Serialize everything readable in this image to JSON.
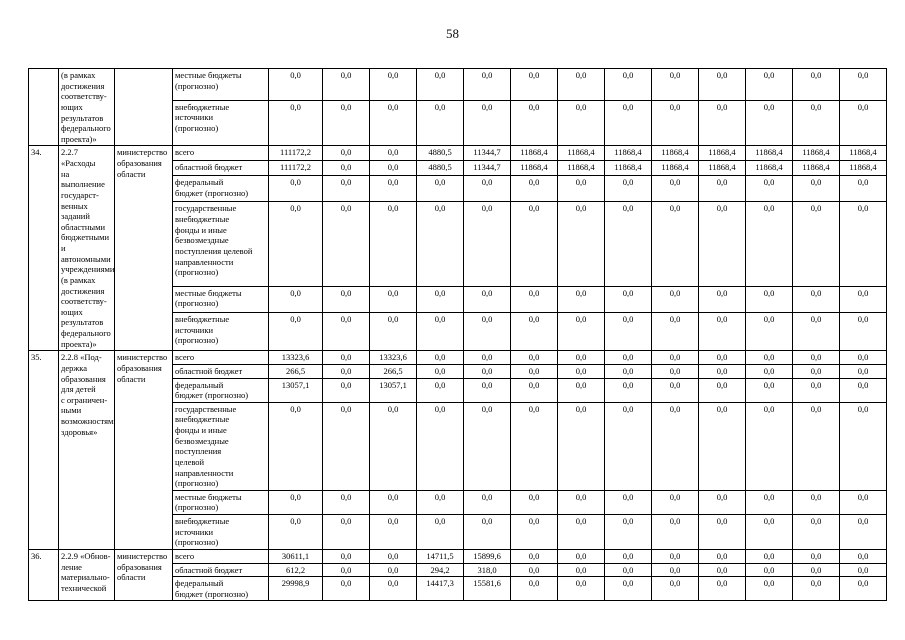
{
  "page": {
    "number": "58"
  },
  "table": {
    "blocks": [
      {
        "num": "",
        "name": "(в рамках\nдостижения\nсоответству-\nющих\nрезультатов\nфедерального\nпроекта)»",
        "executor": "",
        "rows": [
          {
            "source": "местные бюджеты\n(прогнозно)",
            "values": [
              "0,0",
              "0,0",
              "0,0",
              "0,0",
              "0,0",
              "0,0",
              "0,0",
              "0,0",
              "0,0",
              "0,0",
              "0,0",
              "0,0",
              "0,0"
            ]
          },
          {
            "source": "внебюджетные\nисточники\n(прогнозно)",
            "values": [
              "0,0",
              "0,0",
              "0,0",
              "0,0",
              "0,0",
              "0,0",
              "0,0",
              "0,0",
              "0,0",
              "0,0",
              "0,0",
              "0,0",
              "0,0"
            ]
          }
        ]
      },
      {
        "num": "34.",
        "name": "2.2.7 «Расходы\nна выполнение\nгосударст-\nвенных\nзаданий\nобластными\nбюджетными\nи автономными\nучреждениями\n(в рамках\nдостижения\nсоответству-\nющих\nрезультатов\nфедерального\nпроекта)»",
        "executor": "министерство\nобразования\nобласти",
        "rows": [
          {
            "source": "всего",
            "values": [
              "111172,2",
              "0,0",
              "0,0",
              "4880,5",
              "11344,7",
              "11868,4",
              "11868,4",
              "11868,4",
              "11868,4",
              "11868,4",
              "11868,4",
              "11868,4",
              "11868,4"
            ]
          },
          {
            "source": "областной бюджет",
            "values": [
              "111172,2",
              "0,0",
              "0,0",
              "4880,5",
              "11344,7",
              "11868,4",
              "11868,4",
              "11868,4",
              "11868,4",
              "11868,4",
              "11868,4",
              "11868,4",
              "11868,4"
            ]
          },
          {
            "source": "федеральный\nбюджет (прогнозно)",
            "values": [
              "0,0",
              "0,0",
              "0,0",
              "0,0",
              "0,0",
              "0,0",
              "0,0",
              "0,0",
              "0,0",
              "0,0",
              "0,0",
              "0,0",
              "0,0"
            ]
          },
          {
            "source": "государственные\nвнебюджетные\nфонды и иные\nбезвозмездные\nпоступления целевой\nнаправленности\n(прогнозно)",
            "values": [
              "0,0",
              "0,0",
              "0,0",
              "0,0",
              "0,0",
              "0,0",
              "0,0",
              "0,0",
              "0,0",
              "0,0",
              "0,0",
              "0,0",
              "0,0"
            ]
          },
          {
            "source": "местные бюджеты\n(прогнозно)",
            "values": [
              "0,0",
              "0,0",
              "0,0",
              "0,0",
              "0,0",
              "0,0",
              "0,0",
              "0,0",
              "0,0",
              "0,0",
              "0,0",
              "0,0",
              "0,0"
            ]
          },
          {
            "source": "внебюджетные\nисточники\n(прогнозно)",
            "values": [
              "0,0",
              "0,0",
              "0,0",
              "0,0",
              "0,0",
              "0,0",
              "0,0",
              "0,0",
              "0,0",
              "0,0",
              "0,0",
              "0,0",
              "0,0"
            ]
          }
        ]
      },
      {
        "num": "35.",
        "name": "2.2.8 «Под-\nдержка\nобразования\nдля детей\nс ограничен-\nными\nвозможностями\nздоровья»",
        "executor": "министерство\nобразования\nобласти",
        "rows": [
          {
            "source": "всего",
            "values": [
              "13323,6",
              "0,0",
              "13323,6",
              "0,0",
              "0,0",
              "0,0",
              "0,0",
              "0,0",
              "0,0",
              "0,0",
              "0,0",
              "0,0",
              "0,0"
            ]
          },
          {
            "source": "областной бюджет",
            "values": [
              "266,5",
              "0,0",
              "266,5",
              "0,0",
              "0,0",
              "0,0",
              "0,0",
              "0,0",
              "0,0",
              "0,0",
              "0,0",
              "0,0",
              "0,0"
            ]
          },
          {
            "source": "федеральный\nбюджет (прогнозно)",
            "values": [
              "13057,1",
              "0,0",
              "13057,1",
              "0,0",
              "0,0",
              "0,0",
              "0,0",
              "0,0",
              "0,0",
              "0,0",
              "0,0",
              "0,0",
              "0,0"
            ]
          },
          {
            "source": "государственные\nвнебюджетные\nфонды и иные\nбезвозмездные\nпоступления\nцелевой\nнаправленности\n(прогнозно)",
            "values": [
              "0,0",
              "0,0",
              "0,0",
              "0,0",
              "0,0",
              "0,0",
              "0,0",
              "0,0",
              "0,0",
              "0,0",
              "0,0",
              "0,0",
              "0,0"
            ]
          },
          {
            "source": "местные бюджеты\n(прогнозно)",
            "values": [
              "0,0",
              "0,0",
              "0,0",
              "0,0",
              "0,0",
              "0,0",
              "0,0",
              "0,0",
              "0,0",
              "0,0",
              "0,0",
              "0,0",
              "0,0"
            ]
          },
          {
            "source": "внебюджетные\nисточники\n(прогнозно)",
            "values": [
              "0,0",
              "0,0",
              "0,0",
              "0,0",
              "0,0",
              "0,0",
              "0,0",
              "0,0",
              "0,0",
              "0,0",
              "0,0",
              "0,0",
              "0,0"
            ]
          }
        ]
      },
      {
        "num": "36.",
        "name": "2.2.9 «Обнов-\nление\nматериально-\nтехнической",
        "executor": "министерство\nобразования\nобласти",
        "rows": [
          {
            "source": "всего",
            "values": [
              "30611,1",
              "0,0",
              "0,0",
              "14711,5",
              "15899,6",
              "0,0",
              "0,0",
              "0,0",
              "0,0",
              "0,0",
              "0,0",
              "0,0",
              "0,0"
            ]
          },
          {
            "source": "областной бюджет",
            "values": [
              "612,2",
              "0,0",
              "0,0",
              "294,2",
              "318,0",
              "0,0",
              "0,0",
              "0,0",
              "0,0",
              "0,0",
              "0,0",
              "0,0",
              "0,0"
            ]
          },
          {
            "source": "федеральный\nбюджет (прогнозно)",
            "values": [
              "29998,9",
              "0,0",
              "0,0",
              "14417,3",
              "15581,6",
              "0,0",
              "0,0",
              "0,0",
              "0,0",
              "0,0",
              "0,0",
              "0,0",
              "0,0"
            ]
          }
        ]
      }
    ]
  }
}
